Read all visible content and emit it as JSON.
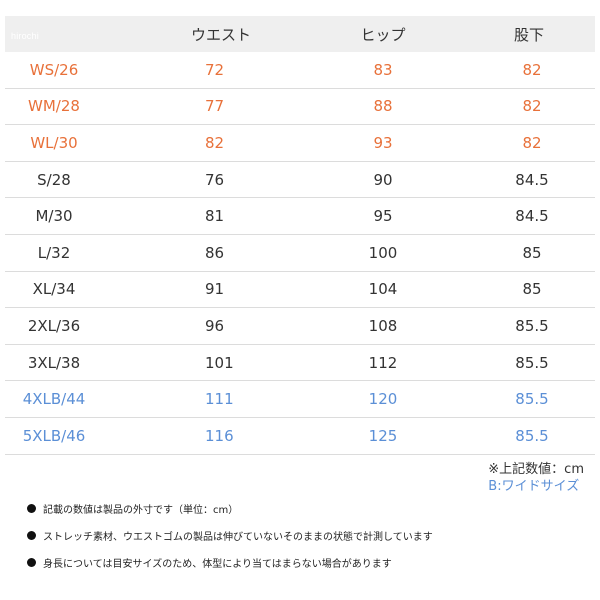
{
  "watermark": "hirochi",
  "table": {
    "headers": [
      "",
      "ウエスト",
      "ヒップ",
      "股下"
    ],
    "rows": [
      {
        "tone": "orange",
        "cells": [
          "WS/26",
          "72",
          "83",
          "82"
        ]
      },
      {
        "tone": "orange",
        "cells": [
          "WM/28",
          "77",
          "88",
          "82"
        ]
      },
      {
        "tone": "orange",
        "cells": [
          "WL/30",
          "82",
          "93",
          "82"
        ]
      },
      {
        "tone": "dark",
        "cells": [
          "S/28",
          "76",
          "90",
          "84.5"
        ]
      },
      {
        "tone": "dark",
        "cells": [
          "M/30",
          "81",
          "95",
          "84.5"
        ]
      },
      {
        "tone": "dark",
        "cells": [
          "L/32",
          "86",
          "100",
          "85"
        ]
      },
      {
        "tone": "dark",
        "cells": [
          "XL/34",
          "91",
          "104",
          "85"
        ]
      },
      {
        "tone": "dark",
        "cells": [
          "2XL/36",
          "96",
          "108",
          "85.5"
        ]
      },
      {
        "tone": "dark",
        "cells": [
          "3XL/38",
          "101",
          "112",
          "85.5"
        ]
      },
      {
        "tone": "blue",
        "cells": [
          "4XLB/44",
          "111",
          "120",
          "85.5"
        ]
      },
      {
        "tone": "blue",
        "cells": [
          "5XLB/46",
          "116",
          "125",
          "85.5"
        ]
      }
    ]
  },
  "unit_note": "※上記数値：cm",
  "wide_note": "B:ワイドサイズ",
  "colors": {
    "orange": "#e8713a",
    "dark": "#333333",
    "blue": "#5b8fd6",
    "header_bg": "#efefef"
  },
  "notes": [
    "記載の数値は製品の外寸です（単位：cm）",
    "ストレッチ素材、ウエストゴムの製品は伸びていないそのままの状態で計測しています",
    "身長については目安サイズのため、体型により当てはまらない場合があります"
  ]
}
